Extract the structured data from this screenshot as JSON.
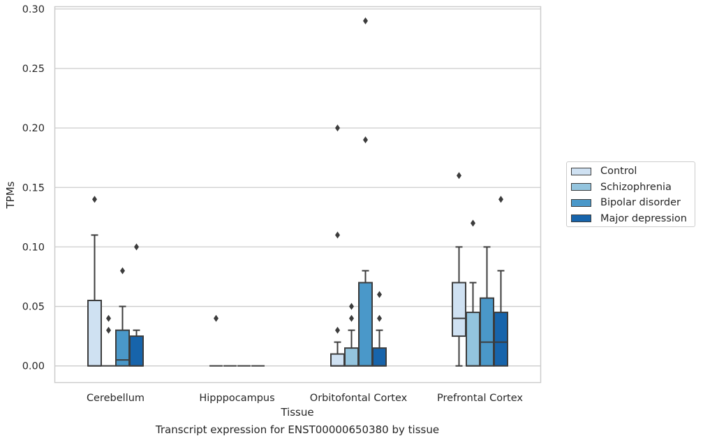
{
  "chart_data": {
    "type": "box",
    "title": "",
    "caption": "Transcript expression for ENST00000650380 by tissue",
    "xlabel": "Tissue",
    "ylabel": "TPMs",
    "ylim": [
      -0.014,
      0.302
    ],
    "yticks": [
      "0.00",
      "0.05",
      "0.10",
      "0.15",
      "0.20",
      "0.25",
      "0.30"
    ],
    "ytick_values": [
      0,
      0.05,
      0.1,
      0.15,
      0.2,
      0.25,
      0.3
    ],
    "categories": [
      "Cerebellum",
      "Hipppocampus",
      "Orbitofontal Cortex",
      "Prefrontal Cortex"
    ],
    "grid": true,
    "legend_position": "right",
    "series": [
      {
        "name": "Control",
        "color": "#cfe1f2",
        "boxes": [
          {
            "min": 0,
            "q1": 0,
            "median": 0,
            "q3": 0.055,
            "max": 0.11,
            "outliers": [
              0.14
            ]
          },
          {
            "min": 0,
            "q1": 0,
            "median": 0,
            "q3": 0,
            "max": 0,
            "outliers": [
              0.04
            ]
          },
          {
            "min": 0,
            "q1": 0,
            "median": 0,
            "q3": 0.01,
            "max": 0.02,
            "outliers": [
              0.03,
              0.11,
              0.2
            ]
          },
          {
            "min": 0,
            "q1": 0.025,
            "median": 0.04,
            "q3": 0.07,
            "max": 0.1,
            "outliers": [
              0.16
            ]
          }
        ]
      },
      {
        "name": "Schizophrenia",
        "color": "#93c4de",
        "boxes": [
          {
            "min": 0,
            "q1": 0,
            "median": 0,
            "q3": 0,
            "max": 0,
            "outliers": [
              0.03,
              0.04
            ]
          },
          {
            "min": 0,
            "q1": 0,
            "median": 0,
            "q3": 0,
            "max": 0,
            "outliers": []
          },
          {
            "min": 0,
            "q1": 0,
            "median": 0,
            "q3": 0.015,
            "max": 0.03,
            "outliers": [
              0.04,
              0.05
            ]
          },
          {
            "min": 0,
            "q1": 0,
            "median": 0,
            "q3": 0.045,
            "max": 0.07,
            "outliers": [
              0.12
            ]
          }
        ]
      },
      {
        "name": "Bipolar disorder",
        "color": "#4a98c9",
        "boxes": [
          {
            "min": 0,
            "q1": 0,
            "median": 0.005,
            "q3": 0.03,
            "max": 0.05,
            "outliers": [
              0.08
            ]
          },
          {
            "min": 0,
            "q1": 0,
            "median": 0,
            "q3": 0,
            "max": 0,
            "outliers": []
          },
          {
            "min": 0,
            "q1": 0,
            "median": 0,
            "q3": 0.07,
            "max": 0.08,
            "outliers": [
              0.19,
              0.29
            ]
          },
          {
            "min": 0,
            "q1": 0,
            "median": 0.02,
            "q3": 0.057,
            "max": 0.1,
            "outliers": []
          }
        ]
      },
      {
        "name": "Major depression",
        "color": "#1764ab",
        "boxes": [
          {
            "min": 0,
            "q1": 0,
            "median": 0,
            "q3": 0.025,
            "max": 0.03,
            "outliers": [
              0.1
            ]
          },
          {
            "min": 0,
            "q1": 0,
            "median": 0,
            "q3": 0,
            "max": 0,
            "outliers": []
          },
          {
            "min": 0,
            "q1": 0,
            "median": 0,
            "q3": 0.015,
            "max": 0.03,
            "outliers": [
              0.04,
              0.06
            ]
          },
          {
            "min": 0,
            "q1": 0,
            "median": 0.02,
            "q3": 0.045,
            "max": 0.08,
            "outliers": [
              0.14
            ]
          }
        ]
      }
    ]
  }
}
